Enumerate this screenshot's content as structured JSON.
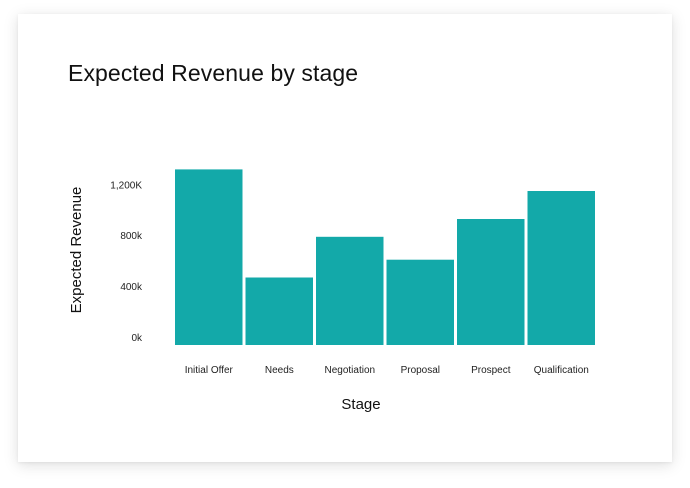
{
  "chart_data": {
    "type": "bar",
    "title": "Expected Revenue by stage",
    "xlabel": "Stage",
    "ylabel": "Expected Revenue",
    "categories": [
      "Initial Offer",
      "Needs",
      "Negotiation",
      "Proposal",
      "Prospect",
      "Qualification"
    ],
    "values": [
      1380,
      530,
      850,
      670,
      990,
      1210
    ],
    "yticks": [
      {
        "value": 0,
        "label": "0k"
      },
      {
        "value": 400,
        "label": "400k"
      },
      {
        "value": 800,
        "label": "800k"
      },
      {
        "value": 1200,
        "label": "1,200K"
      }
    ],
    "ylim": [
      0,
      1430
    ],
    "grid": false,
    "legend": "none",
    "bar_color": "#13a9a9"
  }
}
